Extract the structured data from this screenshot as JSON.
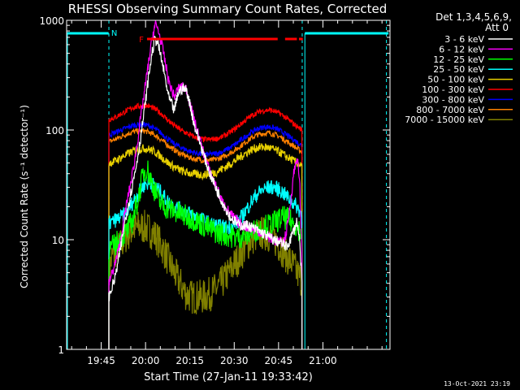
{
  "chart_data": {
    "type": "line",
    "title": "RHESSI Observing Summary Count Rates, Corrected",
    "xlabel": "Start Time (27-Jan-11 19:33:42)",
    "ylabel": "Corrected Count Rate (s⁻¹ detector⁻¹)",
    "footer": "13-Oct-2021 23:19",
    "y_scale": "log",
    "ylim": [
      1,
      1000
    ],
    "y_ticks": [
      {
        "v": 1,
        "label": "1"
      },
      {
        "v": 10,
        "label": "10"
      },
      {
        "v": 100,
        "label": "100"
      },
      {
        "v": 1000,
        "label": "1000"
      }
    ],
    "xlim_minutes": [
      19.6,
      129.0
    ],
    "x_ticks": [
      {
        "t": 31.3,
        "label": "19:45"
      },
      {
        "t": 46.3,
        "label": "20:00"
      },
      {
        "t": 61.3,
        "label": "20:15"
      },
      {
        "t": 76.3,
        "label": "20:30"
      },
      {
        "t": 91.3,
        "label": "20:45"
      },
      {
        "t": 106.3,
        "label": "21:00"
      }
    ],
    "legend_header": [
      "Det 1,3,4,5,6,9,",
      "Att 0"
    ],
    "legend_placement": "right",
    "flags": [
      {
        "label": "F",
        "color": "#ff0000"
      },
      {
        "label": "N",
        "color": "#00ffff"
      }
    ],
    "series": [
      {
        "name": "3 - 6 keV",
        "color": "#ffffff",
        "x": [
          33.9,
          36,
          37.6,
          39.4,
          41.5,
          43,
          44.5,
          45.9,
          47.3,
          48.5,
          49.5,
          50.4,
          52.2,
          54.1,
          56,
          57.4,
          58.8,
          60.2,
          61.6,
          62.8,
          64.2,
          65.9,
          67.8,
          70,
          72.3,
          75,
          78,
          81,
          84.5,
          87,
          89.5,
          91.5,
          93,
          94,
          95.2,
          96.4,
          97.6,
          98.5,
          99.2
        ],
        "y": [
          3,
          4.5,
          7.5,
          15,
          28,
          45,
          80,
          150,
          300,
          500,
          680,
          630,
          380,
          200,
          150,
          220,
          240,
          230,
          160,
          110,
          85,
          60,
          42,
          30,
          22,
          16,
          13.5,
          13.5,
          12,
          11,
          10,
          9.5,
          9,
          8.5,
          10,
          12,
          15,
          9,
          4
        ]
      },
      {
        "name": "6 - 12 keV",
        "color": "#ff00ff",
        "x": [
          33.9,
          36,
          37.6,
          39.4,
          41.5,
          43,
          44.5,
          46,
          47.4,
          48.6,
          49.6,
          50.6,
          52.3,
          54.1,
          56,
          57.4,
          58.8,
          60.2,
          61.6,
          62.8,
          64.2,
          65.9,
          67.8,
          70,
          72.3,
          75,
          78,
          81,
          84.5,
          87,
          89.5,
          91.5,
          93,
          94,
          95.2,
          96.4,
          97.6,
          98.5,
          99.2
        ],
        "y": [
          4,
          6,
          9,
          18,
          35,
          60,
          120,
          230,
          420,
          700,
          920,
          820,
          520,
          280,
          200,
          240,
          245,
          235,
          165,
          120,
          90,
          62,
          43,
          31,
          22,
          17,
          14,
          13,
          12,
          11,
          10,
          9.5,
          9.5,
          12,
          20,
          40,
          58,
          30,
          8
        ]
      },
      {
        "name": "12 - 25 keV",
        "color": "#00ff00",
        "x": [
          33.9,
          36,
          38,
          40,
          42,
          44,
          45.5,
          46.8,
          48,
          49.5,
          51,
          52.8,
          54.6,
          56.5,
          58.5,
          60.5,
          62.5,
          65,
          68,
          71,
          74,
          77,
          80,
          83,
          86,
          89,
          91,
          93,
          95,
          96.5,
          97.7,
          98.6,
          99.2
        ],
        "y": [
          8,
          9,
          10.5,
          12,
          15,
          25,
          40,
          45,
          36,
          28,
          22,
          20,
          19,
          18,
          17,
          16,
          15.5,
          14,
          12.5,
          11.5,
          11,
          10.5,
          11,
          12,
          13,
          14,
          15,
          16,
          15,
          14,
          13,
          12,
          11
        ]
      },
      {
        "name": "25 - 50 keV",
        "color": "#00ffff",
        "x": [
          33.9,
          36,
          38,
          40,
          42,
          44,
          46,
          48,
          50,
          52,
          54,
          56,
          58,
          60,
          62,
          64,
          66,
          68,
          70,
          72,
          74,
          76,
          78,
          80,
          82,
          84,
          86,
          88,
          90,
          92,
          94,
          96,
          97.5,
          98.6,
          99.2
        ],
        "y": [
          14,
          15,
          16,
          18,
          22,
          27,
          32,
          33,
          30,
          26,
          22,
          20,
          19,
          18,
          17,
          16,
          15,
          14,
          13.5,
          13,
          13,
          13.5,
          15,
          18,
          22,
          26,
          28.5,
          30,
          30,
          28,
          25,
          22,
          20,
          18,
          17
        ]
      },
      {
        "name": "50 - 100 keV",
        "color": "#e8d000",
        "x": [
          33.9,
          36,
          38,
          40,
          42,
          44,
          46,
          48,
          50,
          52,
          54,
          56,
          58,
          60,
          62,
          64,
          66,
          68,
          70,
          72,
          74,
          76,
          78,
          80,
          82,
          84,
          86,
          88,
          90,
          92,
          94,
          96,
          97.5,
          98.6,
          99.2
        ],
        "y": [
          50,
          52,
          56,
          60,
          64,
          67,
          68,
          66,
          62,
          56,
          50,
          46,
          43,
          41,
          40,
          39,
          39,
          40,
          41,
          44,
          47,
          51,
          56,
          61,
          66,
          69,
          70,
          69,
          66,
          62,
          57,
          53,
          50,
          48,
          46
        ]
      },
      {
        "name": "100 - 300 keV",
        "color": "#ff0000",
        "x": [
          33.9,
          36,
          38,
          40,
          42,
          44,
          46,
          48,
          50,
          52,
          54,
          56,
          58,
          60,
          62,
          64,
          66,
          68,
          70,
          72,
          74,
          76,
          78,
          80,
          82,
          84,
          86,
          88,
          90,
          92,
          94,
          96,
          97.5,
          98.6,
          99.2
        ],
        "y": [
          125,
          130,
          140,
          150,
          160,
          165,
          168,
          163,
          152,
          138,
          122,
          110,
          101,
          94,
          88,
          84,
          82,
          82,
          83,
          86,
          92,
          100,
          110,
          122,
          134,
          144,
          150,
          152,
          148,
          140,
          128,
          116,
          108,
          103,
          100
        ]
      },
      {
        "name": "300 - 800 keV",
        "color": "#0000ff",
        "x": [
          33.9,
          36,
          38,
          40,
          42,
          44,
          46,
          48,
          50,
          52,
          54,
          56,
          58,
          60,
          62,
          64,
          66,
          68,
          70,
          72,
          74,
          76,
          78,
          80,
          82,
          84,
          86,
          88,
          90,
          92,
          94,
          96,
          97.5,
          98.6,
          99.2
        ],
        "y": [
          90,
          95,
          100,
          105,
          110,
          112,
          112,
          108,
          100,
          92,
          82,
          75,
          70,
          66,
          63,
          61,
          60,
          60,
          61,
          63,
          67,
          72,
          79,
          87,
          95,
          102,
          106,
          107,
          104,
          98,
          90,
          83,
          78,
          74,
          72
        ]
      },
      {
        "name": "800 - 7000 keV",
        "color": "#ff8000",
        "x": [
          33.9,
          36,
          38,
          40,
          42,
          44,
          46,
          48,
          50,
          52,
          54,
          56,
          58,
          60,
          62,
          64,
          66,
          68,
          70,
          72,
          74,
          76,
          78,
          80,
          82,
          84,
          86,
          88,
          90,
          92,
          94,
          96,
          97.5,
          98.6,
          99.2
        ],
        "y": [
          78,
          82,
          87,
          92,
          96,
          98,
          98,
          94,
          88,
          80,
          72,
          66,
          61,
          58,
          55,
          54,
          53,
          53,
          54,
          56,
          60,
          64,
          70,
          77,
          84,
          90,
          93,
          94,
          91,
          86,
          79,
          73,
          68,
          65,
          63
        ]
      },
      {
        "name": "7000 - 15000 keV",
        "color": "#808000",
        "x": [
          33.9,
          35,
          36.5,
          38,
          40,
          42,
          44,
          46,
          48,
          50,
          52,
          54,
          56,
          58,
          60,
          62,
          64,
          66,
          68,
          70,
          72,
          74,
          76,
          78,
          80,
          82,
          84,
          86,
          88,
          90,
          92,
          94,
          96,
          97.5,
          98.6,
          99.2
        ],
        "y": [
          5,
          7,
          8,
          9,
          11,
          12.5,
          13,
          13,
          12,
          10.5,
          8.5,
          6.5,
          5,
          4,
          3.2,
          3,
          3,
          3,
          3.2,
          3.5,
          4,
          4.8,
          5.8,
          7,
          8.5,
          10,
          11,
          11.5,
          11,
          10,
          8.5,
          7,
          6,
          5,
          4.5,
          4
        ]
      }
    ],
    "f_bar_segments": [
      [
        46.8,
        91.0
      ],
      [
        93.5,
        97.5
      ],
      [
        98.2,
        99.5
      ]
    ],
    "n_marker_segments": [
      [
        19.6,
        33.8
      ],
      [
        100.2,
        128.5
      ]
    ],
    "n_dashed_lines": [
      33.9,
      99.3,
      127.8
    ]
  }
}
